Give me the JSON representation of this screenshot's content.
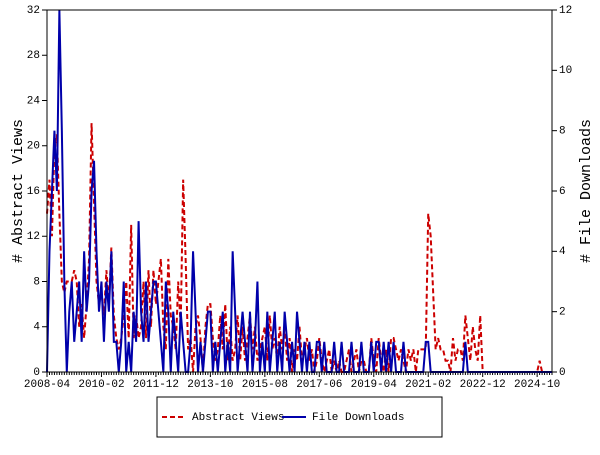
{
  "chart_data": {
    "type": "line",
    "y_label": "# Abstract Views",
    "y2_label": "# File Downloads",
    "categories": [
      "2008-04",
      null,
      null,
      null,
      null,
      null,
      null,
      null,
      null,
      null,
      null,
      null,
      null,
      null,
      null,
      null,
      null,
      null,
      null,
      null,
      null,
      null,
      "2010-02",
      null,
      null,
      null,
      null,
      null,
      null,
      null,
      null,
      null,
      null,
      null,
      null,
      null,
      null,
      null,
      null,
      null,
      null,
      null,
      null,
      null,
      "2011-12",
      null,
      null,
      null,
      null,
      null,
      null,
      null,
      null,
      null,
      null,
      null,
      null,
      null,
      null,
      null,
      null,
      null,
      null,
      null,
      null,
      null,
      "2013-10",
      null,
      null,
      null,
      null,
      null,
      null,
      null,
      null,
      null,
      null,
      null,
      null,
      null,
      null,
      null,
      null,
      null,
      null,
      null,
      null,
      null,
      "2015-08",
      null,
      null,
      null,
      null,
      null,
      null,
      null,
      null,
      null,
      null,
      null,
      null,
      null,
      null,
      null,
      null,
      null,
      null,
      null,
      null,
      null,
      "2017-06",
      null,
      null,
      null,
      null,
      null,
      null,
      null,
      null,
      null,
      null,
      null,
      null,
      null,
      null,
      null,
      null,
      null,
      null,
      null,
      null,
      null,
      "2019-04",
      null,
      null,
      null,
      null,
      null,
      null,
      null,
      null,
      null,
      null,
      null,
      null,
      null,
      null,
      null,
      null,
      null,
      null,
      null,
      null,
      null,
      "2021-02",
      null,
      null,
      null,
      null,
      null,
      null,
      null,
      null,
      null,
      null,
      null,
      null,
      null,
      null,
      null,
      null,
      null,
      null,
      null,
      null,
      null,
      "2022-12",
      null,
      null,
      null,
      null,
      null,
      null,
      null,
      null,
      null,
      null,
      null,
      null,
      null,
      null,
      null,
      null,
      null,
      null,
      null,
      null,
      null,
      "2024-10",
      null,
      null,
      null,
      null,
      null,
      null
    ],
    "series": [
      {
        "name": "Abstract Views",
        "color": "#cc0000",
        "dash": true,
        "axis": "y",
        "values": [
          14,
          17,
          12,
          20,
          21,
          14,
          8,
          7,
          8,
          8,
          8,
          9,
          8,
          4,
          6,
          3,
          6,
          10,
          22,
          15,
          8,
          6,
          7,
          5,
          9,
          6,
          11,
          5,
          3,
          2,
          3,
          5,
          8,
          3,
          13,
          3,
          5,
          3,
          4,
          8,
          3,
          9,
          4,
          9,
          6,
          8,
          10,
          4,
          2,
          10,
          5,
          4,
          2,
          8,
          4,
          17,
          10,
          2,
          3,
          0,
          4,
          5,
          3,
          0,
          4,
          6,
          6,
          3,
          1,
          2,
          5,
          2,
          6,
          1,
          4,
          1,
          2,
          5,
          1,
          4,
          1,
          3,
          5,
          2,
          4,
          1,
          2,
          3,
          4,
          1,
          5,
          2,
          3,
          1,
          4,
          2,
          4,
          1,
          3,
          0,
          2,
          1,
          4,
          1,
          2,
          3,
          1,
          2,
          0,
          1,
          3,
          1,
          0,
          1,
          2,
          0,
          1,
          0,
          1,
          0,
          0,
          1,
          2,
          0,
          1,
          2,
          0,
          1,
          1,
          0,
          0,
          3,
          1,
          0,
          3,
          1,
          0,
          2,
          0,
          3,
          3,
          2,
          1,
          2,
          1,
          0,
          2,
          1,
          2,
          0,
          2,
          2,
          2,
          2,
          14,
          12,
          7,
          2,
          3,
          2,
          2,
          1,
          1,
          0,
          3,
          1,
          2,
          2,
          1,
          5,
          3,
          1,
          4,
          2,
          1,
          5,
          0,
          0,
          0,
          0,
          0,
          0,
          0,
          0,
          0,
          0,
          0,
          0,
          0,
          0,
          0,
          0,
          0,
          0,
          0,
          0,
          0,
          0,
          0,
          1,
          0,
          0,
          0,
          0,
          0
        ]
      },
      {
        "name": "File Downloads",
        "color": "#0000aa",
        "dash": false,
        "axis": "y2",
        "values": [
          0,
          4,
          6,
          8,
          6,
          12,
          8,
          3,
          0,
          2,
          3,
          1,
          2,
          3,
          1,
          4,
          2,
          3,
          6,
          7,
          4,
          2,
          3,
          1,
          3,
          2,
          4,
          1,
          1,
          0,
          1,
          3,
          0,
          1,
          0,
          2,
          1,
          5,
          2,
          1,
          3,
          1,
          2,
          3,
          3,
          2,
          1,
          0,
          3,
          2,
          0,
          2,
          1,
          0,
          2,
          1,
          0,
          0,
          1,
          4,
          2,
          0,
          1,
          0,
          1,
          2,
          2,
          0,
          1,
          0,
          1,
          2,
          0,
          1,
          0,
          4,
          2,
          0,
          1,
          2,
          1,
          0,
          2,
          0,
          1,
          3,
          0,
          1,
          0,
          2,
          0,
          1,
          2,
          0,
          1,
          0,
          2,
          1,
          0,
          1,
          0,
          2,
          1,
          0,
          1,
          0,
          1,
          0,
          0,
          1,
          1,
          0,
          1,
          0,
          0,
          0,
          1,
          0,
          0,
          1,
          0,
          0,
          0,
          1,
          0,
          0,
          0,
          1,
          0,
          0,
          0,
          1,
          0,
          1,
          1,
          0,
          1,
          0,
          1,
          0,
          1,
          0,
          0,
          0,
          1,
          0,
          0,
          0,
          0,
          0,
          0,
          0,
          0,
          1,
          1,
          0,
          0,
          0,
          0,
          0,
          0,
          0,
          0,
          0,
          0,
          0,
          0,
          0,
          0,
          1,
          0,
          0,
          0,
          0,
          0,
          0,
          0,
          0,
          0,
          0,
          0,
          0,
          0,
          0,
          0,
          0,
          0,
          0,
          0,
          0,
          0,
          0,
          0,
          0,
          0,
          0,
          0,
          0,
          0,
          0,
          0,
          0,
          0,
          0,
          0
        ]
      }
    ],
    "ylim": [
      0,
      32
    ],
    "yticks": [
      0,
      4,
      8,
      12,
      16,
      20,
      24,
      28,
      32
    ],
    "y2lim": [
      0,
      12
    ],
    "y2ticks": [
      0,
      2,
      4,
      6,
      8,
      10,
      12
    ],
    "legend": "bottom"
  }
}
